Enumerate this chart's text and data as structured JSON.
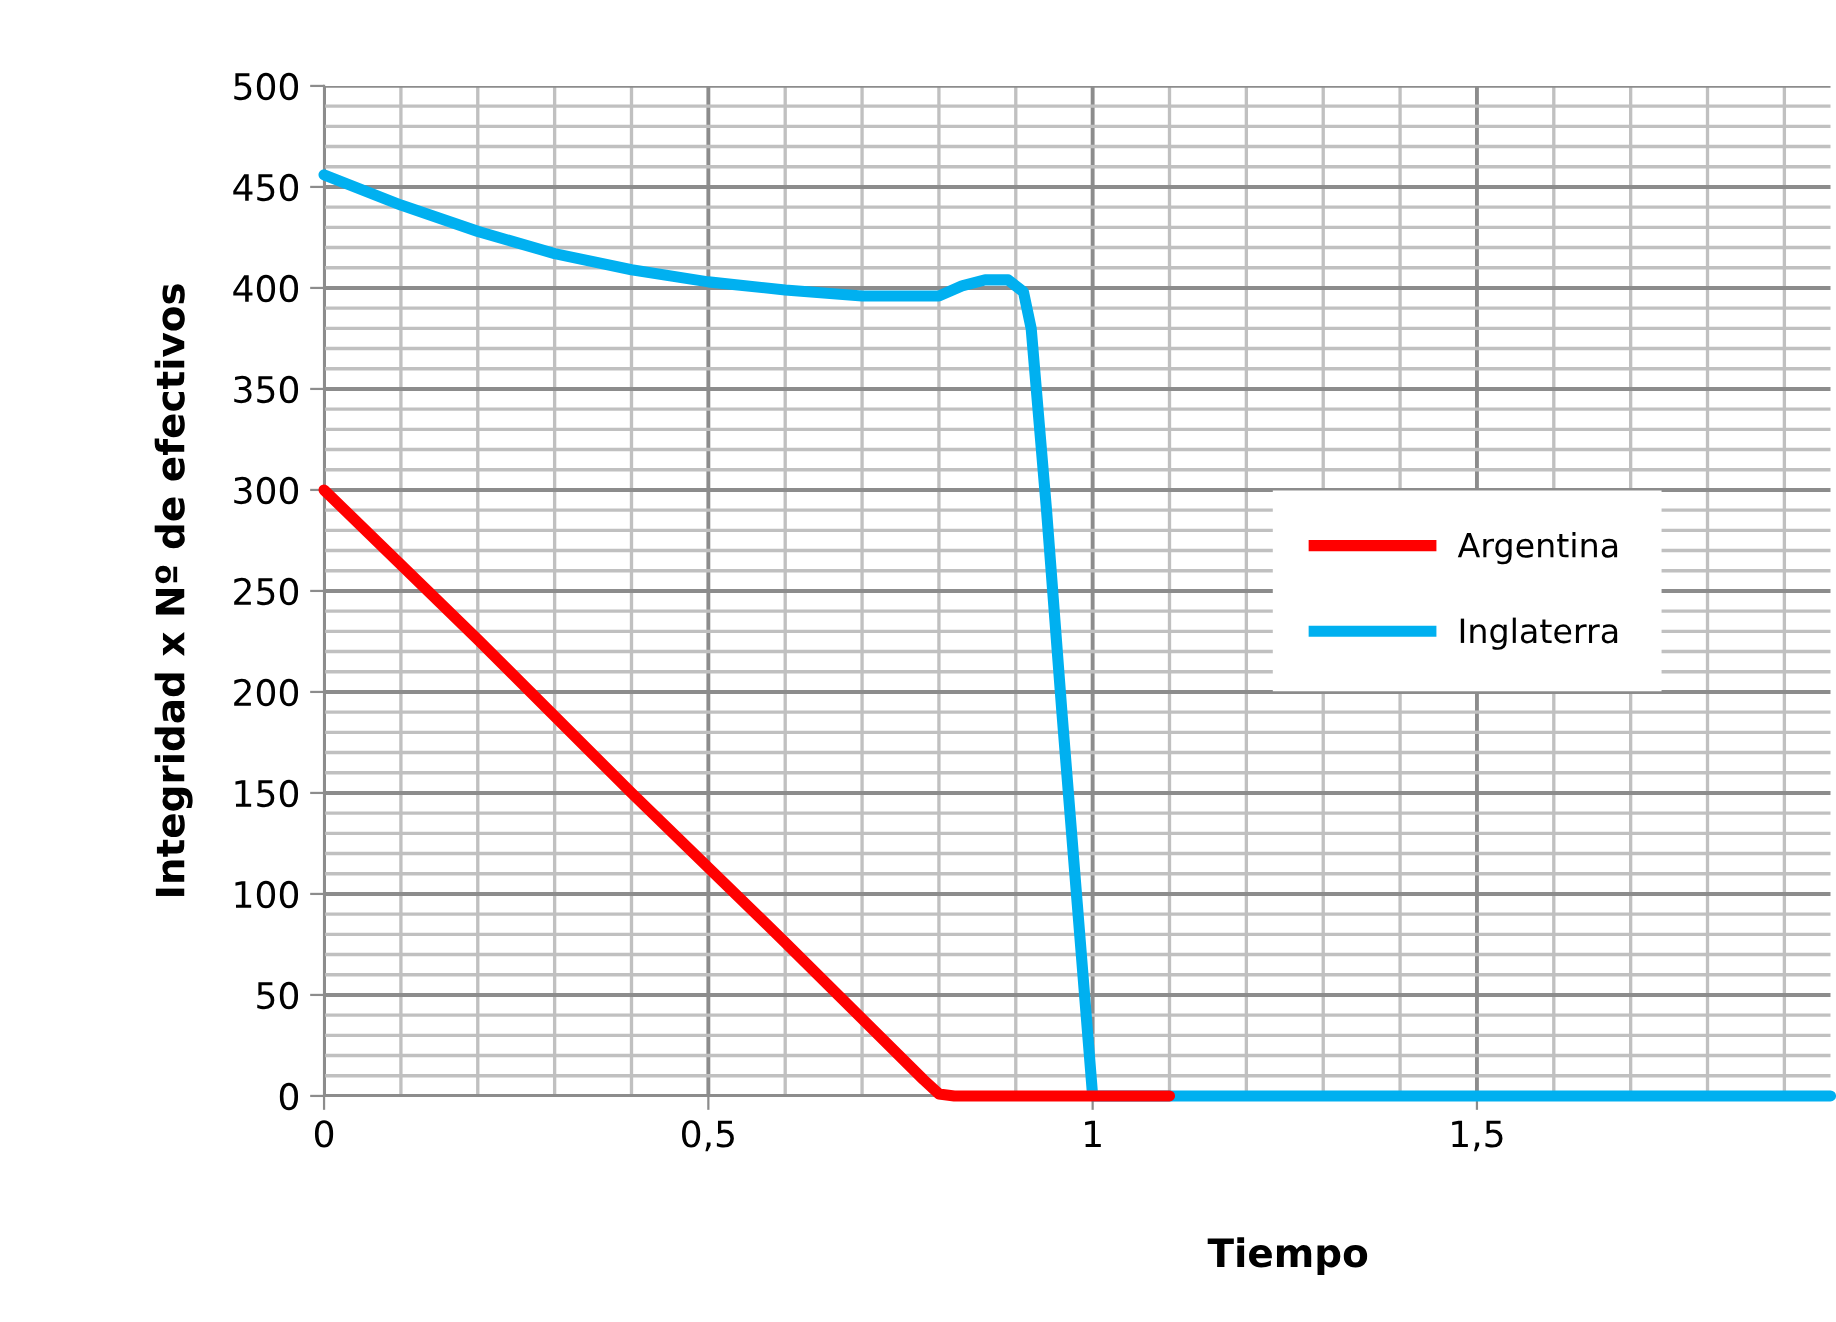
{
  "chart_data": {
    "type": "line",
    "xlabel": "Tiempo",
    "ylabel": "Integridad x Nº de efectivos",
    "series": [
      {
        "name": "Inglaterra",
        "color": "#00b0f0",
        "x": [
          0,
          0.1,
          0.2,
          0.3,
          0.4,
          0.5,
          0.6,
          0.7,
          0.8,
          0.83,
          0.86,
          0.89,
          0.91,
          0.92,
          0.94,
          0.96,
          0.98,
          1.0,
          1.1,
          1.96
        ],
        "values": [
          456,
          441,
          428,
          417,
          409,
          403,
          399,
          396,
          396,
          401,
          404,
          404,
          398,
          380,
          290,
          190,
          95,
          0,
          0,
          0
        ]
      },
      {
        "name": "Argentina",
        "color": "#ff0000",
        "x": [
          0,
          0.2,
          0.4,
          0.6,
          0.78,
          0.8,
          0.82,
          0.9,
          1.0,
          1.1
        ],
        "values": [
          300,
          226,
          150,
          76,
          8,
          1,
          0,
          0,
          0,
          0
        ]
      }
    ],
    "xlim": [
      0,
      1.96
    ],
    "xticks": [
      0,
      {
        "value": 0.5,
        "label": "0,5"
      },
      1,
      {
        "value": 1.5,
        "label": "1,5"
      }
    ],
    "ylim": [
      0,
      500
    ],
    "yticks": [
      0,
      50,
      100,
      150,
      200,
      250,
      300,
      350,
      400,
      450,
      500
    ],
    "grid": true,
    "legend": "right",
    "marker": "none",
    "line_style": "solid"
  }
}
